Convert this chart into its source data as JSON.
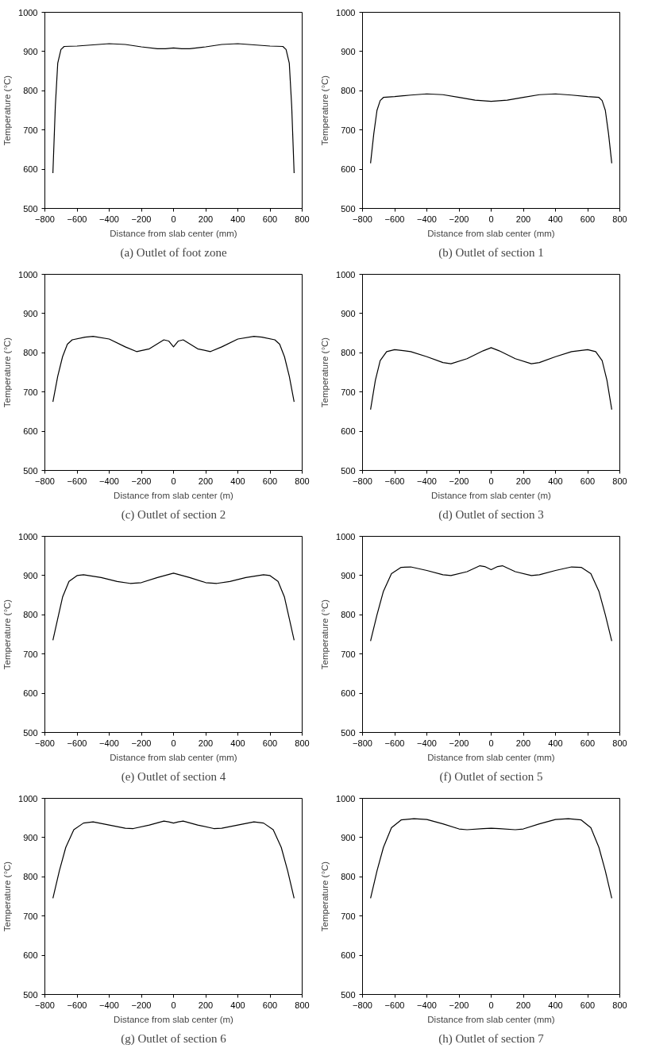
{
  "chart_data": [
    {
      "type": "line",
      "title": "(a) Outlet of foot zone",
      "xlabel": "Distance from slab center (mm)",
      "ylabel": "Temperature (°C)",
      "xlim": [
        -800,
        800
      ],
      "ylim": [
        500,
        1000
      ],
      "xticks": [
        -800,
        -600,
        -400,
        -200,
        0,
        200,
        400,
        600,
        800
      ],
      "yticks": [
        500,
        600,
        700,
        800,
        900,
        1000
      ],
      "grid": false,
      "series": [
        {
          "color": "#000000",
          "x": [
            -750,
            -735,
            -720,
            -700,
            -680,
            -600,
            -500,
            -400,
            -300,
            -200,
            -100,
            -50,
            0,
            50,
            100,
            200,
            300,
            400,
            500,
            600,
            680,
            700,
            720,
            735,
            750
          ],
          "values": [
            590,
            760,
            870,
            905,
            913,
            914,
            917,
            920,
            918,
            912,
            907,
            907,
            909,
            907,
            907,
            912,
            918,
            920,
            917,
            914,
            913,
            905,
            870,
            760,
            590
          ]
        }
      ]
    },
    {
      "type": "line",
      "title": "(b) Outlet of section 1",
      "xlabel": "Distance from slab center (mm)",
      "ylabel": "Temperature (°C)",
      "xlim": [
        -800,
        800
      ],
      "ylim": [
        500,
        1000
      ],
      "xticks": [
        -800,
        -600,
        -400,
        -200,
        0,
        200,
        400,
        600,
        800
      ],
      "yticks": [
        500,
        600,
        700,
        800,
        900,
        1000
      ],
      "grid": false,
      "series": [
        {
          "color": "#000000",
          "x": [
            -750,
            -730,
            -710,
            -690,
            -670,
            -600,
            -500,
            -400,
            -300,
            -200,
            -100,
            0,
            100,
            200,
            300,
            400,
            500,
            600,
            670,
            690,
            710,
            730,
            750
          ],
          "values": [
            615,
            690,
            750,
            775,
            783,
            785,
            789,
            792,
            790,
            783,
            776,
            773,
            776,
            783,
            790,
            792,
            789,
            785,
            783,
            775,
            750,
            690,
            615
          ]
        }
      ]
    },
    {
      "type": "line",
      "title": "(c) Outlet of section 2",
      "xlabel": "Distance from slab center (m)",
      "ylabel": "Temperature (°C)",
      "xlim": [
        -800,
        800
      ],
      "ylim": [
        500,
        1000
      ],
      "xticks": [
        -800,
        -600,
        -400,
        -200,
        0,
        200,
        400,
        600,
        800
      ],
      "yticks": [
        500,
        600,
        700,
        800,
        900,
        1000
      ],
      "grid": false,
      "series": [
        {
          "color": "#000000",
          "x": [
            -750,
            -720,
            -690,
            -660,
            -630,
            -550,
            -500,
            -400,
            -300,
            -230,
            -150,
            -60,
            -30,
            0,
            30,
            60,
            150,
            230,
            300,
            400,
            500,
            550,
            630,
            660,
            690,
            720,
            750
          ],
          "values": [
            675,
            740,
            790,
            822,
            833,
            840,
            842,
            835,
            815,
            803,
            810,
            833,
            830,
            815,
            830,
            833,
            810,
            803,
            815,
            835,
            842,
            840,
            833,
            822,
            790,
            740,
            675
          ]
        }
      ]
    },
    {
      "type": "line",
      "title": "(d) Outlet of section 3",
      "xlabel": "Distance from slab center (m)",
      "ylabel": "Temperature (°C)",
      "xlim": [
        -800,
        800
      ],
      "ylim": [
        500,
        1000
      ],
      "xticks": [
        -800,
        -600,
        -400,
        -200,
        0,
        200,
        400,
        600,
        800
      ],
      "yticks": [
        500,
        600,
        700,
        800,
        900,
        1000
      ],
      "grid": false,
      "series": [
        {
          "color": "#000000",
          "x": [
            -750,
            -720,
            -690,
            -650,
            -600,
            -500,
            -400,
            -300,
            -250,
            -150,
            -50,
            0,
            50,
            150,
            250,
            300,
            400,
            500,
            600,
            650,
            690,
            720,
            750
          ],
          "values": [
            655,
            730,
            780,
            803,
            808,
            803,
            790,
            775,
            772,
            785,
            805,
            813,
            805,
            785,
            772,
            775,
            790,
            803,
            808,
            803,
            780,
            730,
            655
          ]
        }
      ]
    },
    {
      "type": "line",
      "title": "(e) Outlet of section 4",
      "xlabel": "Distance from slab center (mm)",
      "ylabel": "Temperature (°C)",
      "xlim": [
        -800,
        800
      ],
      "ylim": [
        500,
        1000
      ],
      "xticks": [
        -800,
        -600,
        -400,
        -200,
        0,
        200,
        400,
        600,
        800
      ],
      "yticks": [
        500,
        600,
        700,
        800,
        900,
        1000
      ],
      "grid": false,
      "series": [
        {
          "color": "#000000",
          "x": [
            -750,
            -720,
            -690,
            -650,
            -600,
            -560,
            -450,
            -350,
            -270,
            -200,
            -100,
            0,
            100,
            200,
            270,
            350,
            450,
            560,
            600,
            650,
            690,
            720,
            750
          ],
          "values": [
            735,
            790,
            845,
            885,
            900,
            902,
            895,
            885,
            880,
            882,
            895,
            906,
            895,
            882,
            880,
            885,
            895,
            902,
            900,
            885,
            845,
            790,
            735
          ]
        }
      ]
    },
    {
      "type": "line",
      "title": "(f) Outlet of section 5",
      "xlabel": "Distance from slab center (mm)",
      "ylabel": "Temperature (°C)",
      "xlim": [
        -800,
        800
      ],
      "ylim": [
        500,
        1000
      ],
      "xticks": [
        -800,
        -600,
        -400,
        -200,
        0,
        200,
        400,
        600,
        800
      ],
      "yticks": [
        500,
        600,
        700,
        800,
        900,
        1000
      ],
      "grid": false,
      "series": [
        {
          "color": "#000000",
          "x": [
            -750,
            -710,
            -670,
            -620,
            -560,
            -500,
            -400,
            -300,
            -250,
            -150,
            -70,
            -40,
            0,
            40,
            70,
            150,
            250,
            300,
            400,
            500,
            560,
            620,
            670,
            710,
            750
          ],
          "values": [
            733,
            800,
            860,
            905,
            921,
            922,
            913,
            902,
            900,
            910,
            925,
            923,
            915,
            923,
            925,
            910,
            900,
            902,
            913,
            922,
            921,
            905,
            860,
            800,
            733
          ]
        }
      ]
    },
    {
      "type": "line",
      "title": "(g) Outlet of section 6",
      "xlabel": "Distance from slab center (m)",
      "ylabel": "Temperature (°C)",
      "xlim": [
        -800,
        800
      ],
      "ylim": [
        500,
        1000
      ],
      "xticks": [
        -800,
        -600,
        -400,
        -200,
        0,
        200,
        400,
        600,
        800
      ],
      "yticks": [
        500,
        600,
        700,
        800,
        900,
        1000
      ],
      "grid": false,
      "series": [
        {
          "color": "#000000",
          "x": [
            -750,
            -710,
            -670,
            -620,
            -560,
            -500,
            -400,
            -300,
            -250,
            -150,
            -60,
            -30,
            0,
            30,
            60,
            150,
            250,
            300,
            400,
            500,
            560,
            620,
            670,
            710,
            750
          ],
          "values": [
            745,
            815,
            875,
            920,
            937,
            940,
            932,
            924,
            923,
            932,
            942,
            940,
            937,
            940,
            942,
            932,
            923,
            924,
            932,
            940,
            937,
            920,
            875,
            815,
            745
          ]
        }
      ]
    },
    {
      "type": "line",
      "title": "(h) Outlet of section 7",
      "xlabel": "Distance from slab center (mm)",
      "ylabel": "Temperature (°C)",
      "xlim": [
        -800,
        800
      ],
      "ylim": [
        500,
        1000
      ],
      "xticks": [
        -800,
        -600,
        -400,
        -200,
        0,
        200,
        400,
        600,
        800
      ],
      "yticks": [
        500,
        600,
        700,
        800,
        900,
        1000
      ],
      "grid": false,
      "series": [
        {
          "color": "#000000",
          "x": [
            -750,
            -710,
            -670,
            -620,
            -560,
            -480,
            -400,
            -300,
            -200,
            -150,
            -50,
            0,
            50,
            150,
            200,
            300,
            400,
            480,
            560,
            620,
            670,
            710,
            750
          ],
          "values": [
            745,
            815,
            875,
            925,
            945,
            948,
            946,
            935,
            922,
            920,
            923,
            924,
            923,
            920,
            922,
            935,
            946,
            948,
            945,
            925,
            875,
            815,
            745
          ]
        }
      ]
    }
  ]
}
